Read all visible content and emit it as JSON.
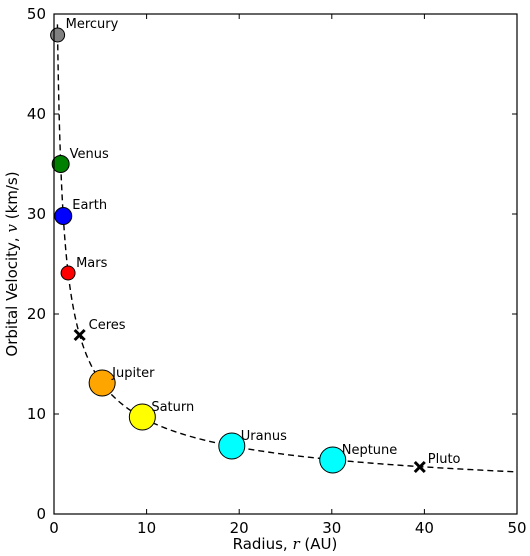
{
  "chart_data": {
    "type": "scatter",
    "xlabel_prefix": "Radius, ",
    "xlabel_var": "r",
    "xlabel_suffix": " (AU)",
    "ylabel_prefix": "Orbital Velocity, ",
    "ylabel_var": "v",
    "ylabel_suffix": " (km/s)",
    "xlim": [
      0,
      50
    ],
    "ylim": [
      0,
      50
    ],
    "xticks": [
      0,
      10,
      20,
      30,
      40,
      50
    ],
    "yticks": [
      0,
      10,
      20,
      30,
      40,
      50
    ],
    "grid": false,
    "curve": {
      "style": "dashed",
      "color": "#000000",
      "formula": "v = 29.78 / sqrt(r)"
    },
    "points": [
      {
        "name": "Mercury",
        "x": 0.39,
        "y": 47.9,
        "color": "#808080",
        "marker": "circle",
        "size": "small"
      },
      {
        "name": "Venus",
        "x": 0.72,
        "y": 35.0,
        "color": "#008000",
        "marker": "circle",
        "size": "medium"
      },
      {
        "name": "Earth",
        "x": 1.0,
        "y": 29.8,
        "color": "#0000ff",
        "marker": "circle",
        "size": "medium"
      },
      {
        "name": "Mars",
        "x": 1.52,
        "y": 24.1,
        "color": "#ff0000",
        "marker": "circle",
        "size": "small"
      },
      {
        "name": "Ceres",
        "x": 2.77,
        "y": 17.9,
        "color": "#000000",
        "marker": "x",
        "size": "small"
      },
      {
        "name": "Jupiter",
        "x": 5.2,
        "y": 13.1,
        "color": "#ffa500",
        "marker": "circle",
        "size": "large"
      },
      {
        "name": "Saturn",
        "x": 9.54,
        "y": 9.7,
        "color": "#ffff00",
        "marker": "circle",
        "size": "large"
      },
      {
        "name": "Uranus",
        "x": 19.2,
        "y": 6.8,
        "color": "#00ffff",
        "marker": "circle",
        "size": "large"
      },
      {
        "name": "Neptune",
        "x": 30.1,
        "y": 5.4,
        "color": "#00ffff",
        "marker": "circle",
        "size": "large"
      },
      {
        "name": "Pluto",
        "x": 39.5,
        "y": 4.7,
        "color": "#000000",
        "marker": "x",
        "size": "small"
      }
    ]
  }
}
